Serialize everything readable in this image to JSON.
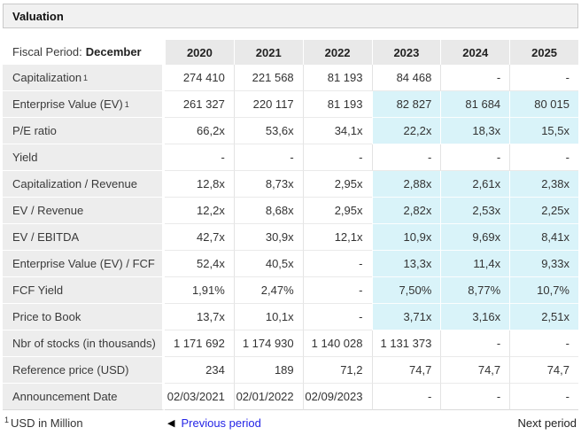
{
  "title": "Valuation",
  "colors": {
    "highlight_cyan": "#d9f3f9",
    "link_blue": "#2525e6",
    "header_gray": "#e9e9e9",
    "label_gray": "#ededed",
    "bar_gray": "#f1f1f1"
  },
  "table": {
    "fiscal_label": "Fiscal Period:",
    "fiscal_value": "December",
    "years": [
      "2020",
      "2021",
      "2022",
      "2023",
      "2024",
      "2025"
    ],
    "rows": [
      {
        "label": "Capitalization",
        "sup": "1",
        "values": [
          "274 410",
          "221 568",
          "81 193",
          "84 468",
          "-",
          "-"
        ],
        "highlight": [
          false,
          false,
          false,
          false,
          false,
          false
        ]
      },
      {
        "label": "Enterprise Value (EV)",
        "sup": "1",
        "values": [
          "261 327",
          "220 117",
          "81 193",
          "82 827",
          "81 684",
          "80 015"
        ],
        "highlight": [
          false,
          false,
          false,
          true,
          true,
          true
        ]
      },
      {
        "label": "P/E ratio",
        "sup": "",
        "values": [
          "66,2x",
          "53,6x",
          "34,1x",
          "22,2x",
          "18,3x",
          "15,5x"
        ],
        "highlight": [
          false,
          false,
          false,
          true,
          true,
          true
        ]
      },
      {
        "label": "Yield",
        "sup": "",
        "values": [
          "-",
          "-",
          "-",
          "-",
          "-",
          "-"
        ],
        "highlight": [
          false,
          false,
          false,
          false,
          false,
          false
        ]
      },
      {
        "label": "Capitalization / Revenue",
        "sup": "",
        "values": [
          "12,8x",
          "8,73x",
          "2,95x",
          "2,88x",
          "2,61x",
          "2,38x"
        ],
        "highlight": [
          false,
          false,
          false,
          true,
          true,
          true
        ]
      },
      {
        "label": "EV / Revenue",
        "sup": "",
        "values": [
          "12,2x",
          "8,68x",
          "2,95x",
          "2,82x",
          "2,53x",
          "2,25x"
        ],
        "highlight": [
          false,
          false,
          false,
          true,
          true,
          true
        ]
      },
      {
        "label": "EV / EBITDA",
        "sup": "",
        "values": [
          "42,7x",
          "30,9x",
          "12,1x",
          "10,9x",
          "9,69x",
          "8,41x"
        ],
        "highlight": [
          false,
          false,
          false,
          true,
          true,
          true
        ]
      },
      {
        "label": "Enterprise Value (EV) / FCF",
        "sup": "",
        "values": [
          "52,4x",
          "40,5x",
          "-",
          "13,3x",
          "11,4x",
          "9,33x"
        ],
        "highlight": [
          false,
          false,
          false,
          true,
          true,
          true
        ]
      },
      {
        "label": "FCF Yield",
        "sup": "",
        "values": [
          "1,91%",
          "2,47%",
          "-",
          "7,50%",
          "8,77%",
          "10,7%"
        ],
        "highlight": [
          false,
          false,
          false,
          true,
          true,
          true
        ]
      },
      {
        "label": "Price to Book",
        "sup": "",
        "values": [
          "13,7x",
          "10,1x",
          "-",
          "3,71x",
          "3,16x",
          "2,51x"
        ],
        "highlight": [
          false,
          false,
          false,
          true,
          true,
          true
        ]
      },
      {
        "label": "Nbr of stocks (in thousands)",
        "sup": "",
        "values": [
          "1 171 692",
          "1 174 930",
          "1 140 028",
          "1 131 373",
          "-",
          "-"
        ],
        "highlight": [
          false,
          false,
          false,
          false,
          false,
          false
        ]
      },
      {
        "label": "Reference price (USD)",
        "sup": "",
        "values": [
          "234",
          "189",
          "71,2",
          "74,7",
          "74,7",
          "74,7"
        ],
        "highlight": [
          false,
          false,
          false,
          false,
          false,
          false
        ]
      },
      {
        "label": "Announcement Date",
        "sup": "",
        "values": [
          "02/03/2021",
          "02/01/2022",
          "02/09/2023",
          "-",
          "-",
          "-"
        ],
        "highlight": [
          false,
          false,
          false,
          false,
          false,
          false
        ]
      }
    ]
  },
  "footer": {
    "note_sup": "1",
    "note": "USD in Million",
    "prev_icon": "◀",
    "prev": "Previous period",
    "next": "Next period"
  }
}
